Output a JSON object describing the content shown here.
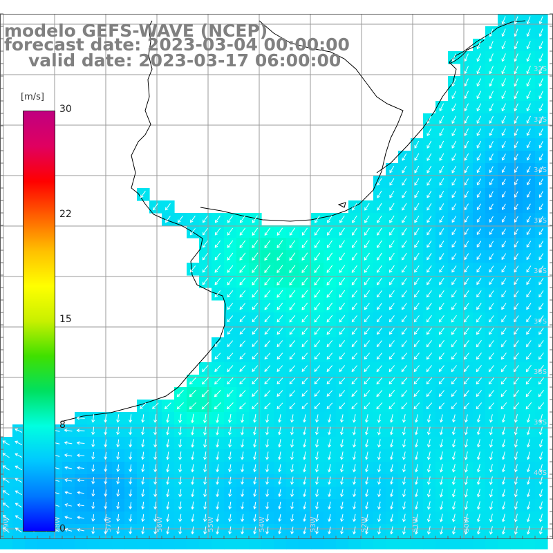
{
  "header": {
    "model_line": "modelo GEFS-WAVE (NCEP)",
    "forecast_line": "forecast date: 2023-03-04 00:00:00",
    "valid_line": "valid date: 2023-03-17 06:00:00"
  },
  "colorbar": {
    "unit": "[m/s]",
    "ticks": [
      "30",
      "22",
      "15",
      "8",
      "0"
    ],
    "tick_values": [
      30,
      22,
      15,
      8,
      0
    ],
    "range": [
      0,
      30
    ],
    "colors": [
      "#0000ff",
      "#0078ff",
      "#00c8ff",
      "#00ffe0",
      "#00e060",
      "#40e000",
      "#c8f000",
      "#ffff00",
      "#ffc000",
      "#ff6000",
      "#ff0000",
      "#e00060",
      "#c00080"
    ]
  },
  "map": {
    "variable": "wind speed and direction",
    "land_color": "#ffffff",
    "coastline_color": "#000000",
    "grid_color": "#9a9a9a",
    "arrow_color": "#ffffff",
    "latitude_labels": [
      "32S",
      "33S",
      "34S",
      "35S",
      "36S",
      "37S",
      "38S",
      "39S",
      "40S"
    ],
    "longitude_labels": [
      "59W",
      "58W",
      "57W",
      "56W",
      "55W",
      "54W",
      "53W",
      "52W",
      "51W",
      "50W"
    ],
    "dominant_direction": "towards south-west",
    "speed_range_m_s": [
      3,
      10
    ]
  }
}
